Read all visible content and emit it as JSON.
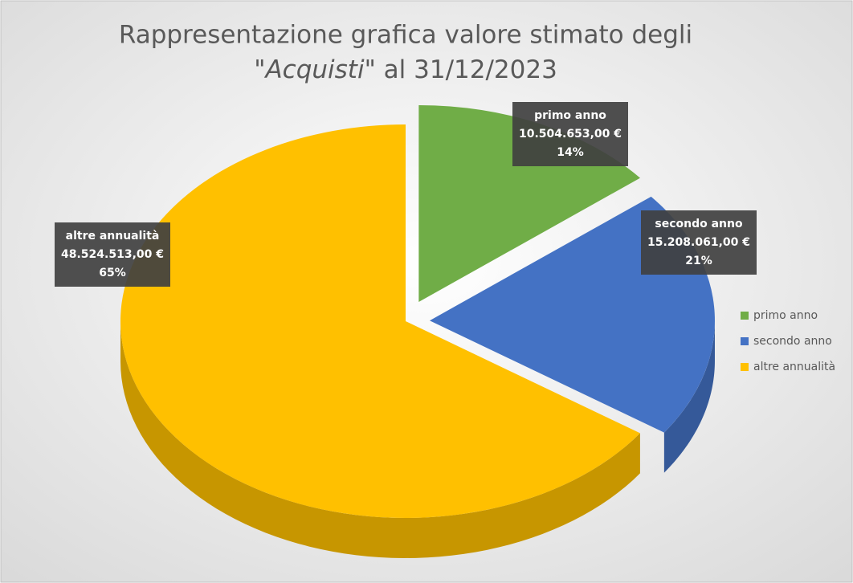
{
  "chart_data": {
    "type": "pie",
    "title": [
      "Rappresentazione grafica valore stimato degli",
      "\"",
      "Acquisti",
      "\" al 31/12/2023"
    ],
    "categories": [
      "primo anno",
      "secondo anno",
      "altre annualità"
    ],
    "values": [
      10504653,
      15208061,
      48524513
    ],
    "value_labels": [
      "10.504.653,00 €",
      "15.208.061,00 €",
      "48.524.513,00 €"
    ],
    "percent": [
      14,
      21,
      65
    ],
    "percent_labels": [
      "14%",
      "21%",
      "65%"
    ],
    "colors": [
      "#70ad47",
      "#4472c4",
      "#ffc000"
    ],
    "legend": "right"
  }
}
